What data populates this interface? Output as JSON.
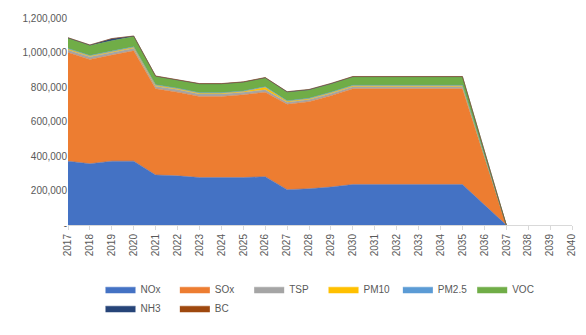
{
  "chart_data": {
    "type": "area",
    "stacked": true,
    "grid": false,
    "legend": "bottom",
    "categories": [
      "2017",
      "2018",
      "2019",
      "2020",
      "2021",
      "2022",
      "2023",
      "2024",
      "2025",
      "2026",
      "2027",
      "2028",
      "2029",
      "2030",
      "2031",
      "2032",
      "2033",
      "2034",
      "2035",
      "2036",
      "2037",
      "2038",
      "2039",
      "2040"
    ],
    "ylim": [
      0,
      1200000
    ],
    "yticks": [
      {
        "value": 0,
        "label": "-"
      },
      {
        "value": 200000,
        "label": "200,000"
      },
      {
        "value": 400000,
        "label": "400,000"
      },
      {
        "value": 600000,
        "label": "600,000"
      },
      {
        "value": 800000,
        "label": "800,000"
      },
      {
        "value": 1000000,
        "label": "1,000,000"
      },
      {
        "value": 1200000,
        "label": "1,200,000"
      }
    ],
    "series": [
      {
        "name": "NOx",
        "color": "#4472C4",
        "values": [
          370000,
          355000,
          370000,
          370000,
          290000,
          285000,
          275000,
          275000,
          275000,
          280000,
          205000,
          210000,
          220000,
          235000,
          235000,
          235000,
          235000,
          235000,
          235000,
          117000,
          0,
          null,
          null,
          null
        ]
      },
      {
        "name": "SOx",
        "color": "#ED7D31",
        "values": [
          630000,
          605000,
          615000,
          640000,
          500000,
          485000,
          470000,
          470000,
          480000,
          490000,
          495000,
          505000,
          530000,
          555000,
          555000,
          555000,
          555000,
          555000,
          555000,
          277000,
          0,
          null,
          null,
          null
        ]
      },
      {
        "name": "TSP",
        "color": "#A5A5A5",
        "values": [
          15000,
          15000,
          15000,
          15000,
          15000,
          15000,
          14000,
          14000,
          14000,
          14000,
          12000,
          12000,
          12000,
          12000,
          12000,
          12000,
          12000,
          12000,
          12000,
          6000,
          0,
          null,
          null,
          null
        ]
      },
      {
        "name": "PM10",
        "color": "#FFC000",
        "values": [
          5000,
          5000,
          5000,
          5000,
          5000,
          5000,
          5000,
          5000,
          5000,
          15000,
          5000,
          5000,
          5000,
          5000,
          5000,
          5000,
          5000,
          5000,
          5000,
          2500,
          0,
          null,
          null,
          null
        ]
      },
      {
        "name": "PM2.5",
        "color": "#5B9BD5",
        "values": [
          3000,
          3000,
          3000,
          3000,
          3000,
          3000,
          3000,
          3000,
          3000,
          3000,
          3000,
          3000,
          3000,
          3000,
          3000,
          3000,
          3000,
          3000,
          3000,
          1500,
          0,
          null,
          null,
          null
        ]
      },
      {
        "name": "VOC",
        "color": "#70AD47",
        "values": [
          60000,
          58000,
          60000,
          60000,
          48000,
          48000,
          50000,
          50000,
          50000,
          50000,
          50000,
          48000,
          48000,
          48000,
          48000,
          48000,
          48000,
          48000,
          48000,
          24000,
          0,
          null,
          null,
          null
        ]
      },
      {
        "name": "NH3",
        "color": "#264478",
        "values": [
          2000,
          2000,
          12000,
          2000,
          2000,
          2000,
          2000,
          2000,
          2000,
          2000,
          2000,
          2000,
          2000,
          2000,
          2000,
          2000,
          2000,
          2000,
          2000,
          1000,
          0,
          null,
          null,
          null
        ]
      },
      {
        "name": "BC",
        "color": "#9E480E",
        "values": [
          1000,
          1000,
          1000,
          1000,
          1000,
          1000,
          1000,
          1000,
          1000,
          1000,
          1000,
          1000,
          1000,
          1000,
          1000,
          1000,
          1000,
          1000,
          1000,
          500,
          0,
          null,
          null,
          null
        ]
      }
    ]
  }
}
